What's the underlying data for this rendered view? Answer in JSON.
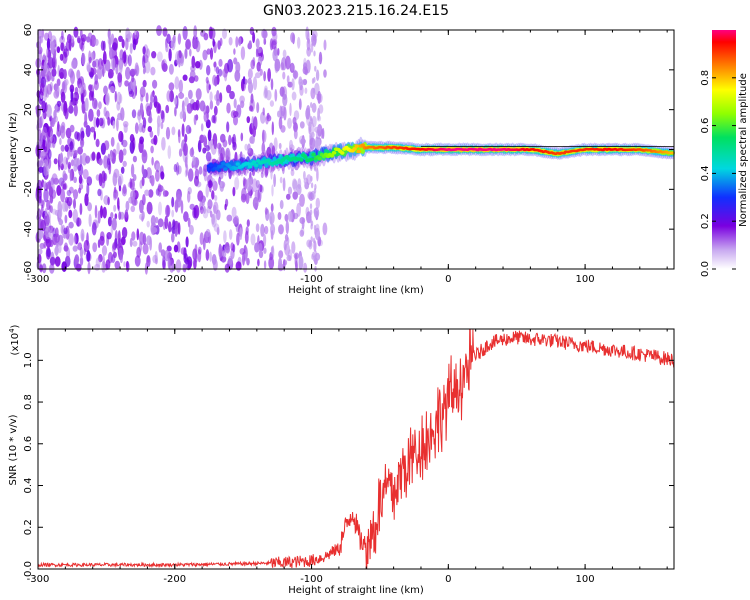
{
  "title": "GN03.2023.215.16.24.E15",
  "chart_data": [
    {
      "type": "heatmap",
      "xlabel": "Height of straight line (km)",
      "ylabel": "Frequency (Hz)",
      "xlim": [
        -300,
        165
      ],
      "ylim": [
        -60,
        60
      ],
      "xticks": [
        -300,
        -200,
        -100,
        0,
        100
      ],
      "yticks": [
        -60,
        -40,
        -20,
        0,
        20,
        40,
        60
      ],
      "xtick_labels": [
        "-300",
        "-200",
        "-100",
        "0",
        "100"
      ],
      "ytick_labels": [
        "-60",
        "-40",
        "-20",
        "0",
        "20",
        "40",
        "60"
      ],
      "colorbar": {
        "label": "Normalized spectral amplitude",
        "range": [
          0,
          1
        ],
        "ticks": [
          0,
          0.2,
          0.4,
          0.6,
          0.8
        ],
        "tick_labels": [
          "0.0",
          "0.2",
          "0.4",
          "0.6",
          "0.8"
        ]
      },
      "ridge": {
        "x": [
          -175,
          -155,
          -140,
          -120,
          -100,
          -80,
          -60,
          -40,
          -20,
          0,
          20,
          40,
          60,
          80,
          100,
          120,
          140,
          165
        ],
        "y": [
          -9,
          -8,
          -7,
          -5,
          -4,
          -1,
          1,
          1,
          0,
          0,
          0,
          0,
          0,
          -2,
          0,
          0,
          0,
          -2
        ],
        "amplitude": [
          0.3,
          0.4,
          0.45,
          0.5,
          0.55,
          0.7,
          0.85,
          0.9,
          0.95,
          1.0,
          1.0,
          1.0,
          0.95,
          0.9,
          0.92,
          0.95,
          0.9,
          0.8
        ]
      },
      "grid": false
    },
    {
      "type": "line",
      "xlabel": "Height of straight line (km)",
      "ylabel": "SNR (10 * v/v)",
      "scale_label": "(x10",
      "scale_exp": "4",
      "scale_close": ")",
      "xlim": [
        -300,
        165
      ],
      "ylim": [
        0,
        1.15
      ],
      "xticks": [
        -300,
        -200,
        -100,
        0,
        100
      ],
      "yticks": [
        0,
        0.2,
        0.4,
        0.6,
        0.8,
        1.0
      ],
      "xtick_labels": [
        "-300",
        "-200",
        "-100",
        "0",
        "100"
      ],
      "ytick_labels": [
        "0.0",
        "0.2",
        "0.4",
        "0.6",
        "0.8",
        "1.0"
      ],
      "color": "#e83030",
      "series": [
        {
          "x": [
            -300,
            -250,
            -200,
            -150,
            -120,
            -100,
            -90,
            -80,
            -75,
            -70,
            -65,
            -60,
            -55,
            -50,
            -45,
            -40,
            -35,
            -30,
            -25,
            -20,
            -15,
            -10,
            -5,
            0,
            10,
            20,
            30,
            40,
            50,
            60,
            70,
            80,
            90,
            100,
            110,
            120,
            130,
            140,
            150,
            165
          ],
          "y": [
            0.02,
            0.02,
            0.02,
            0.025,
            0.03,
            0.04,
            0.06,
            0.1,
            0.2,
            0.28,
            0.15,
            0.1,
            0.18,
            0.3,
            0.4,
            0.35,
            0.45,
            0.5,
            0.55,
            0.6,
            0.62,
            0.68,
            0.75,
            0.8,
            0.92,
            1.02,
            1.08,
            1.1,
            1.11,
            1.1,
            1.1,
            1.09,
            1.08,
            1.07,
            1.06,
            1.05,
            1.04,
            1.03,
            1.02,
            1.0
          ]
        }
      ],
      "grid": false
    }
  ]
}
